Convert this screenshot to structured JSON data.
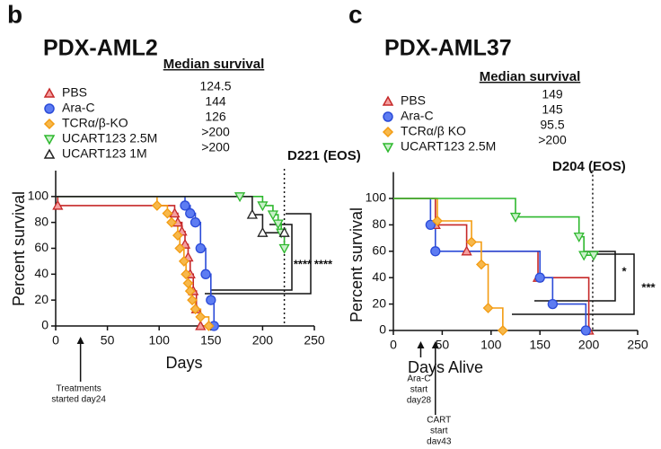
{
  "chart_data": [
    {
      "type": "step",
      "panel": "b",
      "title": "PDX-AML2",
      "median_header": "Median survival",
      "x_label": "Days",
      "y_label": "Percent survival",
      "xlim": [
        0,
        250
      ],
      "ylim": [
        0,
        120
      ],
      "xticks": [
        0,
        50,
        100,
        150,
        200,
        250
      ],
      "yticks": [
        0,
        20,
        40,
        60,
        80,
        100
      ],
      "eos_day": 221,
      "eos_label": "D221 (EOS)",
      "significance": [
        "****",
        "****"
      ],
      "treatment_notes": [
        {
          "day": 24,
          "lines": [
            "Treatments",
            "started day24"
          ]
        }
      ],
      "series": [
        {
          "name": "PBS",
          "median": 124.5,
          "color": "#c62828",
          "fill": "#f4a0a0",
          "marker": "triangle-up",
          "x": [
            0,
            2,
            115,
            118,
            122,
            125,
            128,
            130,
            133,
            136,
            140
          ],
          "values": [
            100,
            93,
            87,
            80,
            73,
            63,
            53,
            40,
            27,
            13,
            0
          ]
        },
        {
          "name": "Ara-C",
          "median": 144,
          "color": "#2b4bd8",
          "fill": "#5d7cf2",
          "marker": "circle",
          "x": [
            0,
            125,
            130,
            135,
            140,
            145,
            150,
            153
          ],
          "values": [
            100,
            93,
            87,
            80,
            60,
            40,
            20,
            0
          ]
        },
        {
          "name": "TCRα/β-KO",
          "median": 126,
          "color": "#f39c12",
          "fill": "#f7b84b",
          "marker": "diamond",
          "x": [
            0,
            98,
            108,
            112,
            118,
            120,
            124,
            126,
            128,
            130,
            132,
            135,
            140,
            148
          ],
          "values": [
            100,
            93,
            87,
            80,
            70,
            60,
            50,
            40,
            33,
            27,
            20,
            13,
            7,
            0
          ]
        },
        {
          "name": "UCART123 2.5M",
          "median": ">200",
          "color": "#2eb82e",
          "fill": "#c8f0c8",
          "marker": "triangle-down",
          "x": [
            0,
            178,
            200,
            210,
            215,
            218,
            221
          ],
          "values": [
            100,
            100,
            93,
            86,
            79,
            72,
            60
          ]
        },
        {
          "name": "UCART123 1M",
          "median": ">200",
          "color": "#222222",
          "fill": "#ffffff",
          "marker": "triangle-up",
          "x": [
            0,
            190,
            200,
            221
          ],
          "values": [
            100,
            86,
            72,
            72
          ]
        }
      ]
    },
    {
      "type": "step",
      "panel": "c",
      "title": "PDX-AML37",
      "median_header": "Median survival",
      "x_label": "Days Alive",
      "y_label": "Percent survival",
      "xlim": [
        0,
        250
      ],
      "ylim": [
        0,
        120
      ],
      "xticks": [
        0,
        50,
        100,
        150,
        200,
        250
      ],
      "yticks": [
        0,
        20,
        40,
        60,
        80,
        100
      ],
      "eos_day": 204,
      "eos_label": "D204 (EOS)",
      "significance": [
        "*",
        "***"
      ],
      "treatment_notes": [
        {
          "day": 28,
          "lines": [
            "Ara-C",
            "start",
            "day28"
          ]
        },
        {
          "day": 43,
          "lines": [
            "CART",
            "start",
            "day43"
          ]
        }
      ],
      "series": [
        {
          "name": "PBS",
          "median": 149,
          "color": "#c62828",
          "fill": "#f4a0a0",
          "marker": "triangle-up",
          "x": [
            0,
            43,
            75,
            148,
            200
          ],
          "values": [
            100,
            80,
            60,
            40,
            0
          ]
        },
        {
          "name": "Ara-C",
          "median": 145,
          "color": "#2b4bd8",
          "fill": "#5d7cf2",
          "marker": "circle",
          "x": [
            0,
            38,
            43,
            150,
            163,
            197
          ],
          "values": [
            100,
            80,
            60,
            40,
            20,
            0
          ]
        },
        {
          "name": "TCRα/β KO",
          "median": 95.5,
          "color": "#f39c12",
          "fill": "#f7b84b",
          "marker": "diamond",
          "x": [
            0,
            45,
            80,
            90,
            97,
            112
          ],
          "values": [
            100,
            83,
            67,
            50,
            17,
            0
          ]
        },
        {
          "name": "UCART123 2.5M",
          "median": ">200",
          "color": "#2eb82e",
          "fill": "#c8f0c8",
          "marker": "triangle-down",
          "x": [
            0,
            125,
            190,
            195,
            205
          ],
          "values": [
            100,
            86,
            71,
            57,
            57
          ]
        }
      ]
    }
  ]
}
